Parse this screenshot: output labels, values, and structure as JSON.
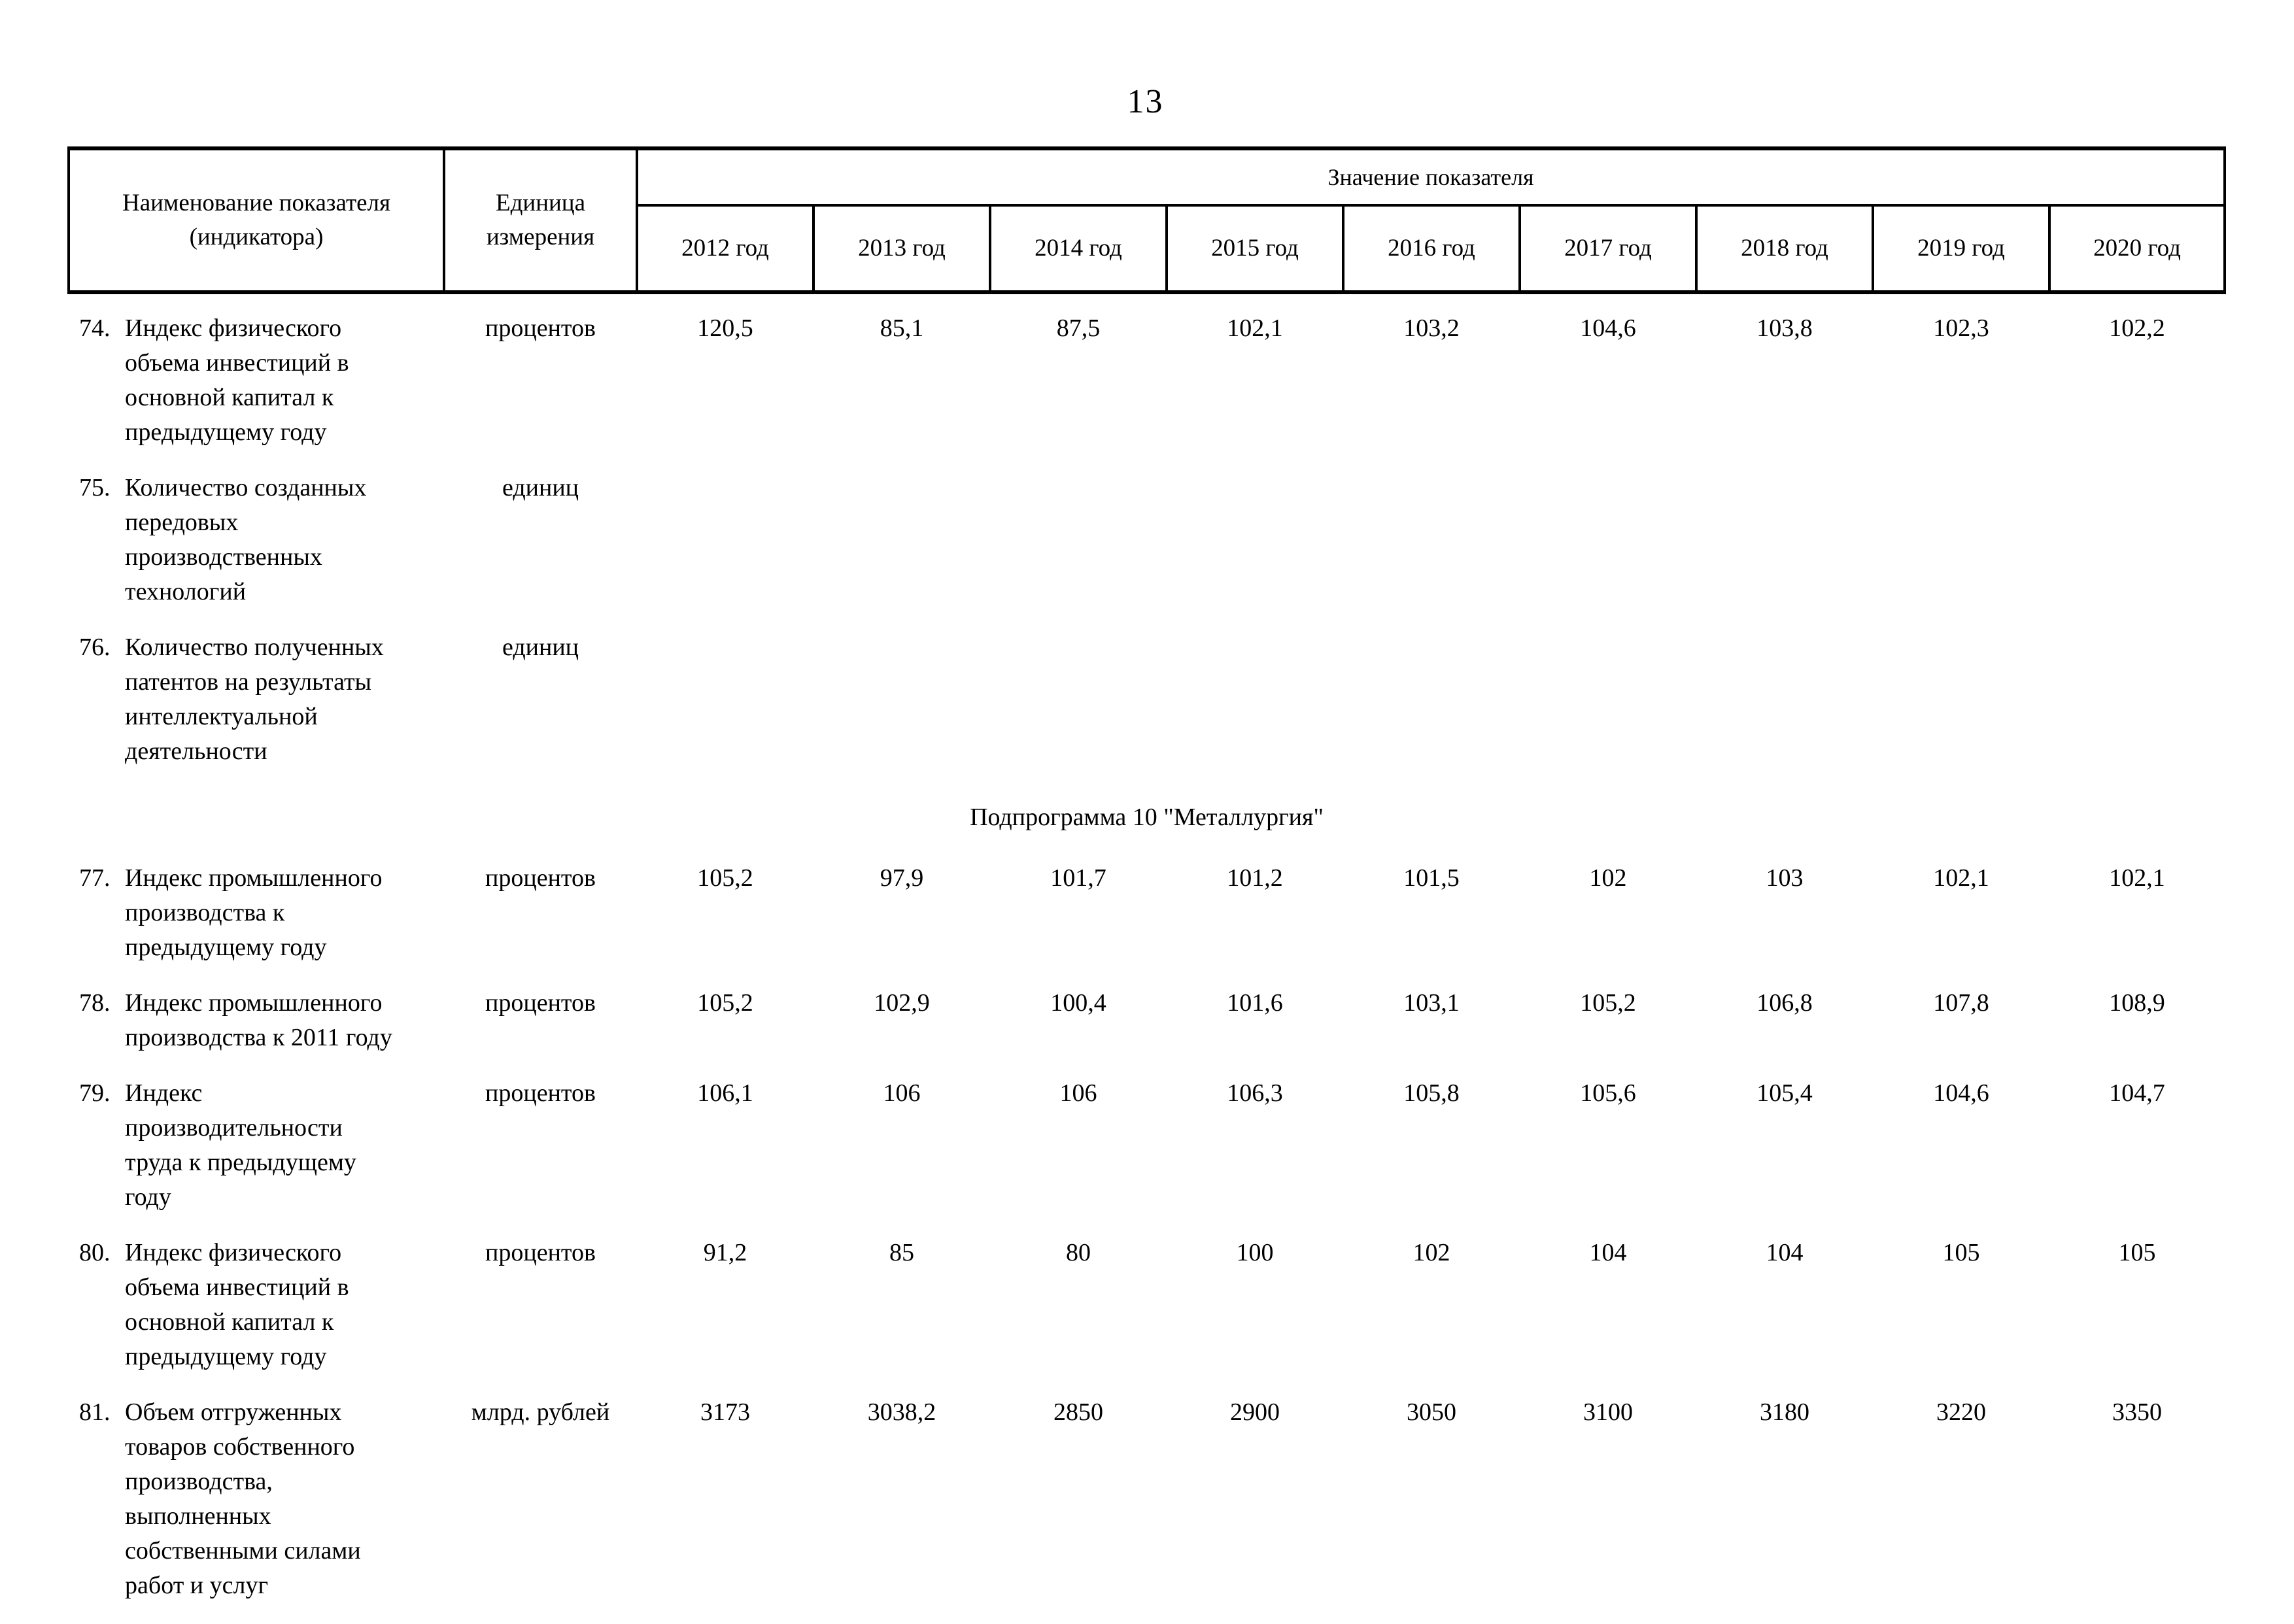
{
  "page": {
    "number": "13",
    "background_color": "#ffffff",
    "text_color": "#000000"
  },
  "table": {
    "headers": {
      "name": "Наименование показателя (индикатора)",
      "unit": "Единица измерения",
      "value_group": "Значение показателя",
      "years": [
        "2012 год",
        "2013 год",
        "2014 год",
        "2015 год",
        "2016 год",
        "2017 год",
        "2018 год",
        "2019 год",
        "2020 год"
      ]
    },
    "sections": [
      {
        "title": null,
        "rows": [
          {
            "num": "74.",
            "name": "Индекс физического объема инвестиций в основной капитал к предыдущему году",
            "unit": "процентов",
            "values": [
              "120,5",
              "85,1",
              "87,5",
              "102,1",
              "103,2",
              "104,6",
              "103,8",
              "102,3",
              "102,2"
            ]
          },
          {
            "num": "75.",
            "name": "Количество созданных передовых производственных технологий",
            "unit": "единиц",
            "values": [
              "",
              "",
              "",
              "",
              "",
              "",
              "",
              "",
              ""
            ]
          },
          {
            "num": "76.",
            "name": "Количество полученных патентов на результаты интеллектуальной деятельности",
            "unit": "единиц",
            "values": [
              "",
              "",
              "",
              "",
              "",
              "",
              "",
              "",
              ""
            ]
          }
        ]
      },
      {
        "title": "Подпрограмма 10 \"Металлургия\"",
        "rows": [
          {
            "num": "77.",
            "name": "Индекс промышленного производства к предыдущему году",
            "unit": "процентов",
            "values": [
              "105,2",
              "97,9",
              "101,7",
              "101,2",
              "101,5",
              "102",
              "103",
              "102,1",
              "102,1"
            ]
          },
          {
            "num": "78.",
            "name": "Индекс промышленного производства к 2011 году",
            "unit": "процентов",
            "values": [
              "105,2",
              "102,9",
              "100,4",
              "101,6",
              "103,1",
              "105,2",
              "106,8",
              "107,8",
              "108,9"
            ]
          },
          {
            "num": "79.",
            "name": "Индекс производительности труда к предыдущему году",
            "unit": "процентов",
            "values": [
              "106,1",
              "106",
              "106",
              "106,3",
              "105,8",
              "105,6",
              "105,4",
              "104,6",
              "104,7"
            ]
          },
          {
            "num": "80.",
            "name": "Индекс физического объема инвестиций в основной капитал к предыдущему году",
            "unit": "процентов",
            "values": [
              "91,2",
              "85",
              "80",
              "100",
              "102",
              "104",
              "104",
              "105",
              "105"
            ]
          },
          {
            "num": "81.",
            "name": "Объем отгруженных товаров собственного производства, выполненных собственными силами работ и услуг",
            "unit": "млрд. рублей",
            "values": [
              "3173",
              "3038,2",
              "2850",
              "2900",
              "3050",
              "3100",
              "3180",
              "3220",
              "3350"
            ]
          }
        ]
      }
    ]
  }
}
